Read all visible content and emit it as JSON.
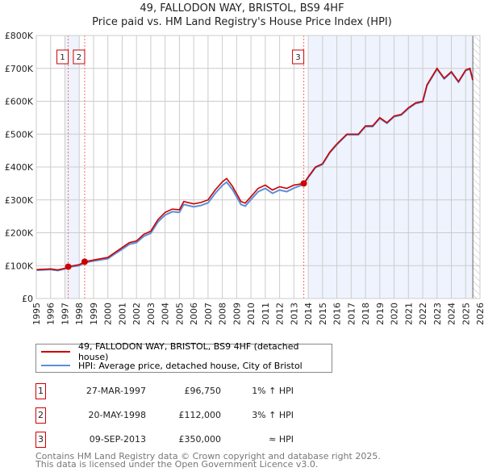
{
  "chart_data": {
    "type": "line",
    "title": "49, FALLODON WAY, BRISTOL, BS9 4HF",
    "subtitle": "Price paid vs. HM Land Registry's House Price Index (HPI)",
    "xlim": [
      1995,
      2026
    ],
    "ylim": [
      0,
      800000
    ],
    "x_ticks": [
      "1995",
      "1996",
      "1997",
      "1998",
      "1999",
      "2000",
      "2001",
      "2002",
      "2003",
      "2004",
      "2005",
      "2006",
      "2007",
      "2008",
      "2009",
      "2010",
      "2011",
      "2012",
      "2013",
      "2014",
      "2015",
      "2016",
      "2017",
      "2018",
      "2019",
      "2020",
      "2021",
      "2022",
      "2023",
      "2024",
      "2025",
      "2026"
    ],
    "y_ticks": [
      {
        "v": 0,
        "label": "£0"
      },
      {
        "v": 100000,
        "label": "£100K"
      },
      {
        "v": 200000,
        "label": "£200K"
      },
      {
        "v": 300000,
        "label": "£300K"
      },
      {
        "v": 400000,
        "label": "£400K"
      },
      {
        "v": 500000,
        "label": "£500K"
      },
      {
        "v": 600000,
        "label": "£600K"
      },
      {
        "v": 700000,
        "label": "£700K"
      },
      {
        "v": 800000,
        "label": "£800K"
      }
    ],
    "grid": true,
    "colors": {
      "property": "#cc0000",
      "hpi": "#5b8fd6",
      "shade": "#eef3fd"
    },
    "series": [
      {
        "name": "49, FALLODON WAY, BRISTOL, BS9 4HF (detached house)",
        "color": "#cc0000",
        "x": [
          1995,
          1996,
          1996.5,
          1997,
          1997.23,
          1998,
          1998.38,
          1999,
          2000,
          2000.5,
          2001,
          2001.5,
          2002,
          2002.5,
          2003,
          2003.5,
          2004,
          2004.5,
          2005,
          2005.3,
          2006,
          2006.5,
          2007,
          2007.5,
          2008,
          2008.3,
          2008.7,
          2009.3,
          2009.6,
          2010,
          2010.5,
          2011,
          2011.5,
          2012,
          2012.5,
          2013,
          2013.69,
          2014,
          2014.5,
          2015,
          2015.5,
          2016,
          2016.7,
          2017.5,
          2018,
          2018.5,
          2019,
          2019.5,
          2020,
          2020.5,
          2021,
          2021.5,
          2022,
          2022.3,
          2023,
          2023.5,
          2024,
          2024.5,
          2025,
          2025.3,
          2025.5
        ],
        "y": [
          88000,
          90000,
          87000,
          92000,
          96750,
          103000,
          112000,
          117000,
          125000,
          140000,
          155000,
          170000,
          175000,
          195000,
          205000,
          240000,
          262000,
          272000,
          270000,
          295000,
          288000,
          292000,
          300000,
          330000,
          355000,
          365000,
          342000,
          295000,
          290000,
          310000,
          335000,
          345000,
          330000,
          340000,
          335000,
          345000,
          350000,
          370000,
          400000,
          410000,
          445000,
          470000,
          500000,
          500000,
          525000,
          525000,
          550000,
          535000,
          555000,
          560000,
          580000,
          595000,
          600000,
          650000,
          700000,
          670000,
          690000,
          660000,
          695000,
          700000,
          665000
        ]
      },
      {
        "name": "HPI: Average price, detached house, City of Bristol",
        "color": "#5b8fd6",
        "x": [
          1995,
          1996,
          1996.5,
          1997,
          1997.23,
          1998,
          1998.38,
          1999,
          2000,
          2000.5,
          2001,
          2001.5,
          2002,
          2002.5,
          2003,
          2003.5,
          2004,
          2004.5,
          2005,
          2005.3,
          2006,
          2006.5,
          2007,
          2007.5,
          2008,
          2008.3,
          2008.7,
          2009.3,
          2009.6,
          2010,
          2010.5,
          2011,
          2011.5,
          2012,
          2012.5,
          2013,
          2013.69,
          2014,
          2014.5,
          2015,
          2015.5,
          2016,
          2016.7,
          2017.5,
          2018,
          2018.5,
          2019,
          2019.5,
          2020,
          2020.5,
          2021,
          2021.5,
          2022,
          2022.3,
          2023,
          2023.5,
          2024,
          2024.5,
          2025,
          2025.3,
          2025.5
        ],
        "y": [
          86000,
          88000,
          85000,
          90000,
          95800,
          100000,
          109000,
          114000,
          121000,
          136000,
          150000,
          165000,
          170000,
          189000,
          199000,
          233000,
          254000,
          264000,
          262000,
          286000,
          279000,
          283000,
          291000,
          320000,
          344000,
          354000,
          332000,
          286000,
          281000,
          301000,
          325000,
          335000,
          320000,
          330000,
          325000,
          336000,
          347000,
          368000,
          398000,
          408000,
          443000,
          468000,
          498000,
          498000,
          523000,
          523000,
          548000,
          533000,
          553000,
          558000,
          578000,
          593000,
          598000,
          648000,
          698000,
          668000,
          688000,
          658000,
          693000,
          698000,
          663000
        ]
      }
    ],
    "sales": [
      {
        "id": "1",
        "date": "27-MAR-1997",
        "x": 1997.23,
        "price": 96750,
        "price_label": "£96,750",
        "hpi_label": "1% ↑ HPI"
      },
      {
        "id": "2",
        "date": "20-MAY-1998",
        "x": 1998.38,
        "price": 112000,
        "price_label": "£112,000",
        "hpi_label": "3% ↑ HPI"
      },
      {
        "id": "3",
        "date": "09-SEP-2013",
        "x": 2013.69,
        "price": 350000,
        "price_label": "£350,000",
        "hpi_label": "≈ HPI"
      }
    ],
    "shaded_ranges": [
      [
        1997,
        1998
      ],
      [
        2014,
        2025.5
      ]
    ],
    "hatched_from": 2025.5,
    "legend_position": "below"
  },
  "footer": {
    "line1": "Contains HM Land Registry data © Crown copyright and database right 2025.",
    "line2": "This data is licensed under the Open Government Licence v3.0."
  }
}
